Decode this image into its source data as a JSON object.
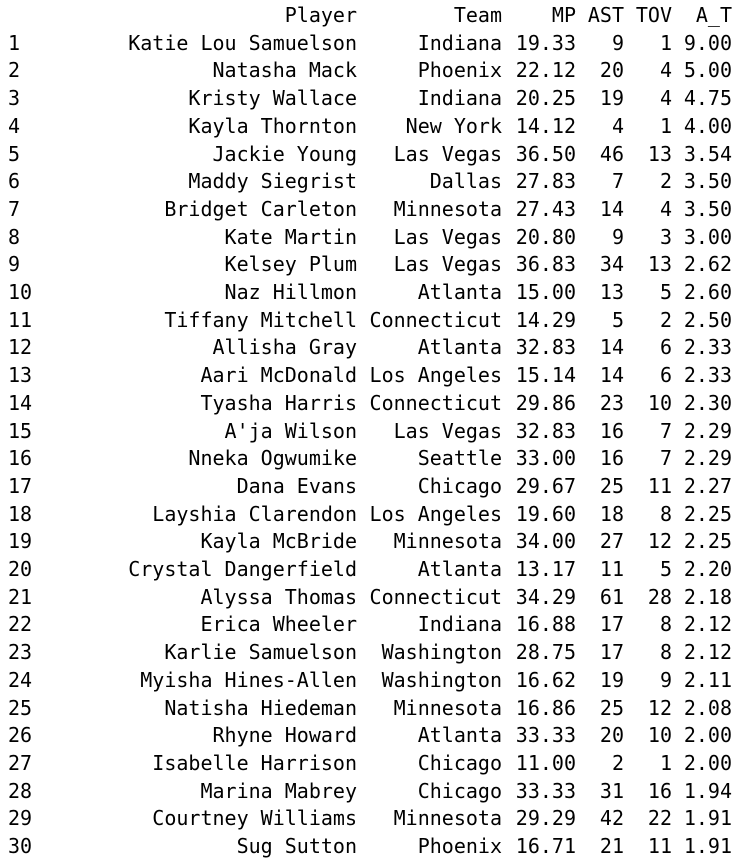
{
  "table": {
    "headers": {
      "index": "",
      "player": "Player",
      "team": "Team",
      "mp": "MP",
      "ast": "AST",
      "tov": "TOV",
      "a_t": "A_T"
    },
    "rows": [
      {
        "idx": "1",
        "player": "Katie Lou Samuelson",
        "team": "Indiana",
        "mp": "19.33",
        "ast": "9",
        "tov": "1",
        "a_t": "9.00"
      },
      {
        "idx": "2",
        "player": "Natasha Mack",
        "team": "Phoenix",
        "mp": "22.12",
        "ast": "20",
        "tov": "4",
        "a_t": "5.00"
      },
      {
        "idx": "3",
        "player": "Kristy Wallace",
        "team": "Indiana",
        "mp": "20.25",
        "ast": "19",
        "tov": "4",
        "a_t": "4.75"
      },
      {
        "idx": "4",
        "player": "Kayla Thornton",
        "team": "New York",
        "mp": "14.12",
        "ast": "4",
        "tov": "1",
        "a_t": "4.00"
      },
      {
        "idx": "5",
        "player": "Jackie Young",
        "team": "Las Vegas",
        "mp": "36.50",
        "ast": "46",
        "tov": "13",
        "a_t": "3.54"
      },
      {
        "idx": "6",
        "player": "Maddy Siegrist",
        "team": "Dallas",
        "mp": "27.83",
        "ast": "7",
        "tov": "2",
        "a_t": "3.50"
      },
      {
        "idx": "7",
        "player": "Bridget Carleton",
        "team": "Minnesota",
        "mp": "27.43",
        "ast": "14",
        "tov": "4",
        "a_t": "3.50"
      },
      {
        "idx": "8",
        "player": "Kate Martin",
        "team": "Las Vegas",
        "mp": "20.80",
        "ast": "9",
        "tov": "3",
        "a_t": "3.00"
      },
      {
        "idx": "9",
        "player": "Kelsey Plum",
        "team": "Las Vegas",
        "mp": "36.83",
        "ast": "34",
        "tov": "13",
        "a_t": "2.62"
      },
      {
        "idx": "10",
        "player": "Naz Hillmon",
        "team": "Atlanta",
        "mp": "15.00",
        "ast": "13",
        "tov": "5",
        "a_t": "2.60"
      },
      {
        "idx": "11",
        "player": "Tiffany Mitchell",
        "team": "Connecticut",
        "mp": "14.29",
        "ast": "5",
        "tov": "2",
        "a_t": "2.50"
      },
      {
        "idx": "12",
        "player": "Allisha Gray",
        "team": "Atlanta",
        "mp": "32.83",
        "ast": "14",
        "tov": "6",
        "a_t": "2.33"
      },
      {
        "idx": "13",
        "player": "Aari McDonald",
        "team": "Los Angeles",
        "mp": "15.14",
        "ast": "14",
        "tov": "6",
        "a_t": "2.33"
      },
      {
        "idx": "14",
        "player": "Tyasha Harris",
        "team": "Connecticut",
        "mp": "29.86",
        "ast": "23",
        "tov": "10",
        "a_t": "2.30"
      },
      {
        "idx": "15",
        "player": "A'ja Wilson",
        "team": "Las Vegas",
        "mp": "32.83",
        "ast": "16",
        "tov": "7",
        "a_t": "2.29"
      },
      {
        "idx": "16",
        "player": "Nneka Ogwumike",
        "team": "Seattle",
        "mp": "33.00",
        "ast": "16",
        "tov": "7",
        "a_t": "2.29"
      },
      {
        "idx": "17",
        "player": "Dana Evans",
        "team": "Chicago",
        "mp": "29.67",
        "ast": "25",
        "tov": "11",
        "a_t": "2.27"
      },
      {
        "idx": "18",
        "player": "Layshia Clarendon",
        "team": "Los Angeles",
        "mp": "19.60",
        "ast": "18",
        "tov": "8",
        "a_t": "2.25"
      },
      {
        "idx": "19",
        "player": "Kayla McBride",
        "team": "Minnesota",
        "mp": "34.00",
        "ast": "27",
        "tov": "12",
        "a_t": "2.25"
      },
      {
        "idx": "20",
        "player": "Crystal Dangerfield",
        "team": "Atlanta",
        "mp": "13.17",
        "ast": "11",
        "tov": "5",
        "a_t": "2.20"
      },
      {
        "idx": "21",
        "player": "Alyssa Thomas",
        "team": "Connecticut",
        "mp": "34.29",
        "ast": "61",
        "tov": "28",
        "a_t": "2.18"
      },
      {
        "idx": "22",
        "player": "Erica Wheeler",
        "team": "Indiana",
        "mp": "16.88",
        "ast": "17",
        "tov": "8",
        "a_t": "2.12"
      },
      {
        "idx": "23",
        "player": "Karlie Samuelson",
        "team": "Washington",
        "mp": "28.75",
        "ast": "17",
        "tov": "8",
        "a_t": "2.12"
      },
      {
        "idx": "24",
        "player": "Myisha Hines-Allen",
        "team": "Washington",
        "mp": "16.62",
        "ast": "19",
        "tov": "9",
        "a_t": "2.11"
      },
      {
        "idx": "25",
        "player": "Natisha Hiedeman",
        "team": "Minnesota",
        "mp": "16.86",
        "ast": "25",
        "tov": "12",
        "a_t": "2.08"
      },
      {
        "idx": "26",
        "player": "Rhyne Howard",
        "team": "Atlanta",
        "mp": "33.33",
        "ast": "20",
        "tov": "10",
        "a_t": "2.00"
      },
      {
        "idx": "27",
        "player": "Isabelle Harrison",
        "team": "Chicago",
        "mp": "11.00",
        "ast": "2",
        "tov": "1",
        "a_t": "2.00"
      },
      {
        "idx": "28",
        "player": "Marina Mabrey",
        "team": "Chicago",
        "mp": "33.33",
        "ast": "31",
        "tov": "16",
        "a_t": "1.94"
      },
      {
        "idx": "29",
        "player": "Courtney Williams",
        "team": "Minnesota",
        "mp": "29.29",
        "ast": "42",
        "tov": "22",
        "a_t": "1.91"
      },
      {
        "idx": "30",
        "player": "Sug Sutton",
        "team": "Phoenix",
        "mp": "16.71",
        "ast": "21",
        "tov": "11",
        "a_t": "1.91"
      }
    ]
  }
}
